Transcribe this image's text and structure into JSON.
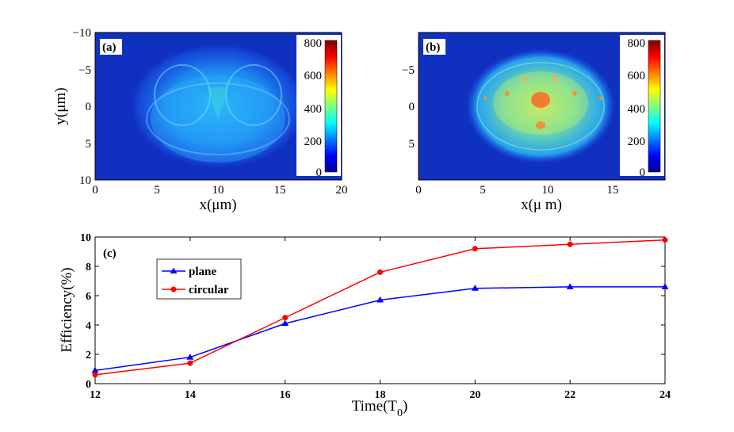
{
  "colors": {
    "plane": "#0000ff",
    "circular": "#ff0000",
    "map_bg": "#1030b8"
  },
  "panels": [
    {
      "label": "(a)",
      "xlabel": "x(μm)",
      "ylabel": "y(μm)",
      "xticks": [
        "0",
        "5",
        "10",
        "15",
        "20"
      ],
      "yticks": [
        "−10",
        "−5",
        "0",
        "5",
        "10"
      ],
      "colorbar_ticks": [
        "0",
        "200",
        "400",
        "600",
        "800"
      ]
    },
    {
      "label": "(b)",
      "xlabel": "x(μ m)",
      "xticks": [
        "0",
        "5",
        "10",
        "15"
      ],
      "yticks": [
        "−5",
        "0",
        "5"
      ],
      "colorbar_ticks": [
        "0",
        "200",
        "400",
        "600",
        "800"
      ]
    }
  ],
  "chart_data": {
    "type": "line",
    "title": "(c)",
    "xlabel": "Time(T",
    "xlabel_sub": "0",
    "xlabel_close": ")",
    "ylabel": "Efficiency(%)",
    "x": [
      12,
      14,
      16,
      18,
      20,
      22,
      24
    ],
    "xlim": [
      12,
      24
    ],
    "ylim": [
      0,
      10
    ],
    "xticks": [
      "12",
      "14",
      "16",
      "18",
      "20",
      "22",
      "24"
    ],
    "yticks": [
      "0",
      "2",
      "4",
      "6",
      "8",
      "10"
    ],
    "series": [
      {
        "name": "plane",
        "marker": "triangle",
        "values": [
          0.9,
          1.8,
          4.1,
          5.7,
          6.5,
          6.6,
          6.6
        ]
      },
      {
        "name": "circular",
        "marker": "circle",
        "values": [
          0.6,
          1.4,
          4.5,
          7.6,
          9.2,
          9.5,
          9.8
        ]
      }
    ]
  }
}
